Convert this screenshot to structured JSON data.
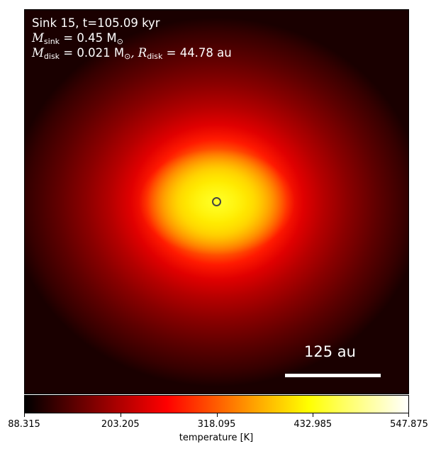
{
  "chart_data": {
    "type": "heatmap",
    "annotations": {
      "line1": "Sink 15, t=105.09 kyr",
      "m_sink_label": "M",
      "m_sink_sub": "sink",
      "m_sink_value": " = 0.45 M",
      "m_sink_unit_sub": "⊙",
      "m_disk_label": "M",
      "m_disk_sub": "disk",
      "m_disk_value": " = 0.021 M",
      "m_disk_unit_sub": "⊙",
      "r_disk_label": ", R",
      "r_disk_sub": "disk",
      "r_disk_value": " = 44.78 au"
    },
    "scale_bar_label": "125 au",
    "colorbar": {
      "label": "temperature [K]",
      "colormap": "hot",
      "range": [
        88.315,
        547.875
      ],
      "ticks": [
        "88.315",
        "203.205",
        "318.095",
        "432.985",
        "547.875"
      ]
    },
    "sink_marker": "center"
  }
}
